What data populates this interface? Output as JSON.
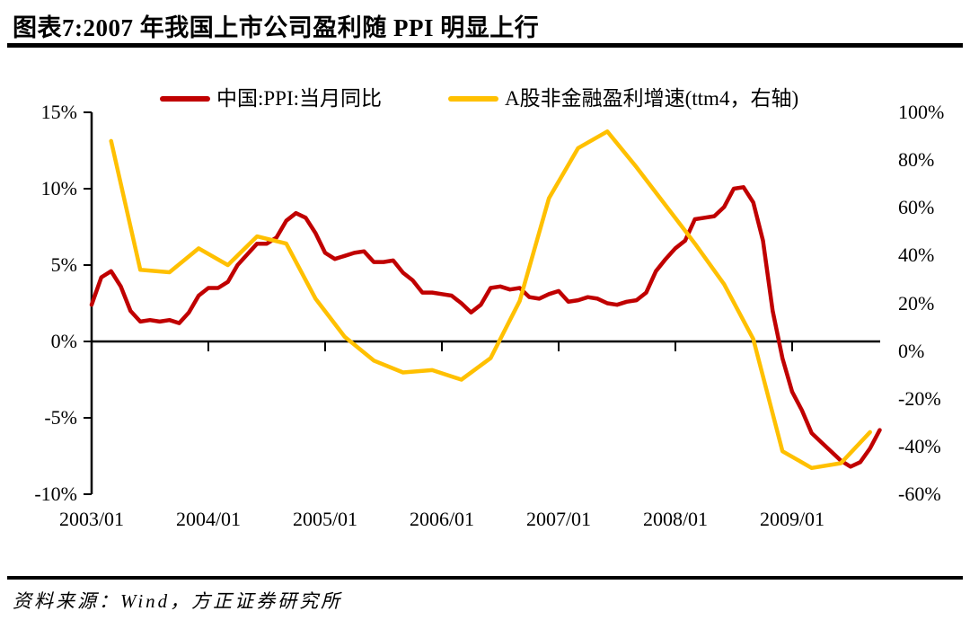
{
  "title": "图表7:2007 年我国上市公司盈利随 PPI 明显上行",
  "source": "资料来源：Wind，方正证券研究所",
  "colors": {
    "ppi_line": "#C00000",
    "earnings_line": "#FFC000",
    "axis": "#000000"
  },
  "chart_data": {
    "type": "line",
    "title": "图表7:2007 年我国上市公司盈利随 PPI 明显上行",
    "legend_position": "top",
    "grid": false,
    "x_axis": {
      "ticks": [
        "2003/01",
        "2004/01",
        "2005/01",
        "2006/01",
        "2007/01",
        "2008/01",
        "2009/01"
      ]
    },
    "left_axis": {
      "ticks": [
        "15%",
        "10%",
        "5%",
        "0%",
        "-5%",
        "-10%"
      ],
      "max": 15,
      "min": -10
    },
    "right_axis": {
      "ticks": [
        "100%",
        "80%",
        "60%",
        "40%",
        "20%",
        "0%",
        "-20%",
        "-40%",
        "-60%"
      ],
      "max": 100,
      "min": -60
    },
    "series": [
      {
        "name": "中国:PPI:当月同比",
        "color": "#C00000",
        "axis": "left",
        "start": "2003/01",
        "interval_months": 1,
        "values": [
          2.4,
          4.2,
          4.6,
          3.6,
          2.0,
          1.3,
          1.4,
          1.3,
          1.4,
          1.2,
          1.9,
          3.0,
          3.5,
          3.5,
          3.9,
          5.0,
          5.7,
          6.4,
          6.4,
          6.8,
          7.9,
          8.4,
          8.1,
          7.1,
          5.8,
          5.4,
          5.6,
          5.8,
          5.9,
          5.2,
          5.2,
          5.3,
          4.5,
          4.0,
          3.2,
          3.2,
          3.1,
          3.0,
          2.5,
          1.9,
          2.4,
          3.5,
          3.6,
          3.4,
          3.5,
          2.9,
          2.8,
          3.1,
          3.3,
          2.6,
          2.7,
          2.9,
          2.8,
          2.5,
          2.4,
          2.6,
          2.7,
          3.2,
          4.6,
          5.4,
          6.1,
          6.6,
          8.0,
          8.1,
          8.2,
          8.8,
          10.0,
          10.1,
          9.1,
          6.6,
          2.0,
          -1.1,
          -3.3,
          -4.5,
          -6.0,
          -6.6,
          -7.2,
          -7.8,
          -8.2,
          -7.9,
          -7.0,
          -5.8
        ]
      },
      {
        "name": "A股非金融盈利增速(ttm4，右轴)",
        "color": "#FFC000",
        "axis": "right",
        "start": "2003/03",
        "interval_months": 3,
        "values": [
          88,
          34,
          33,
          43,
          36,
          48,
          45,
          22,
          6,
          -4,
          -9,
          -8,
          -12,
          -3,
          21,
          64,
          85,
          92,
          77,
          61,
          45,
          28,
          5,
          -42,
          -49,
          -47,
          -34
        ]
      }
    ]
  }
}
